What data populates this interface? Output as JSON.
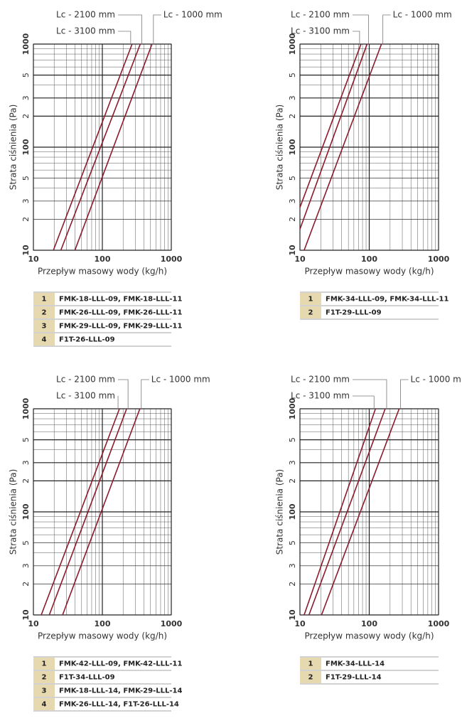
{
  "chart_data": [
    {
      "type": "line",
      "xlabel": "Przepływ masowy wody (kg/h)",
      "ylabel": "Strata ciśnienia (Pa)",
      "log_x": true,
      "log_y": true,
      "grid": true,
      "xlim": [
        10,
        1000
      ],
      "ylim": [
        10,
        1000
      ],
      "xticks": [
        10,
        100,
        1000
      ],
      "yticks": [
        10,
        {
          "value": 20,
          "label": "2"
        },
        {
          "value": 30,
          "label": "3"
        },
        {
          "value": 50,
          "label": "5"
        },
        100,
        {
          "value": 200,
          "label": "2"
        },
        {
          "value": 300,
          "label": "3"
        },
        {
          "value": 500,
          "label": "5"
        },
        1000
      ],
      "series": [
        {
          "name": "Lc - 3100 mm",
          "color": "#8b1a2b",
          "x": [
            19.5,
            270
          ],
          "values": [
            10,
            1000
          ]
        },
        {
          "name": "Lc - 2100 mm",
          "color": "#8b1a2b",
          "x": [
            25,
            355
          ],
          "values": [
            10,
            1000
          ]
        },
        {
          "name": "Lc - 1000 mm",
          "color": "#8b1a2b",
          "x": [
            40,
            525
          ],
          "values": [
            10,
            1000
          ]
        }
      ]
    },
    {
      "type": "line",
      "xlabel": "Przepływ masowy wody (kg/h)",
      "ylabel": "Strata ciśnienia (Pa)",
      "log_x": true,
      "log_y": true,
      "grid": true,
      "xlim": [
        10,
        1000
      ],
      "ylim": [
        10,
        1000
      ],
      "xticks": [
        10,
        100,
        1000
      ],
      "yticks": [
        10,
        {
          "value": 20,
          "label": "2"
        },
        {
          "value": 30,
          "label": "3"
        },
        {
          "value": 50,
          "label": "5"
        },
        100,
        {
          "value": 200,
          "label": "2"
        },
        {
          "value": 300,
          "label": "3"
        },
        {
          "value": 500,
          "label": "5"
        },
        1000
      ],
      "series": [
        {
          "name": "Lc - 3100 mm",
          "color": "#8b1a2b",
          "x": [
            10,
            76
          ],
          "values": [
            26,
            1000
          ]
        },
        {
          "name": "Lc - 2100 mm",
          "color": "#8b1a2b",
          "x": [
            10,
            93
          ],
          "values": [
            16,
            1000
          ]
        },
        {
          "name": "Lc - 1000 mm",
          "color": "#8b1a2b",
          "x": [
            11.5,
            150
          ],
          "values": [
            10,
            1000
          ]
        }
      ]
    },
    {
      "type": "line",
      "xlabel": "Przepływ masowy wody (kg/h)",
      "ylabel": "Strata ciśnienia (Pa)",
      "log_x": true,
      "log_y": true,
      "grid": true,
      "xlim": [
        10,
        1000
      ],
      "ylim": [
        10,
        1000
      ],
      "xticks": [
        10,
        100,
        1000
      ],
      "yticks": [
        10,
        {
          "value": 20,
          "label": "2"
        },
        {
          "value": 30,
          "label": "3"
        },
        {
          "value": 50,
          "label": "5"
        },
        100,
        {
          "value": 200,
          "label": "2"
        },
        {
          "value": 300,
          "label": "3"
        },
        {
          "value": 500,
          "label": "5"
        },
        1000
      ],
      "series": [
        {
          "name": "Lc - 3100 mm",
          "color": "#8b1a2b",
          "x": [
            13,
            177
          ],
          "values": [
            10,
            1000
          ]
        },
        {
          "name": "Lc - 2100 mm",
          "color": "#8b1a2b",
          "x": [
            17,
            225
          ],
          "values": [
            10,
            1000
          ]
        },
        {
          "name": "Lc - 1000 mm",
          "color": "#8b1a2b",
          "x": [
            26.5,
            350
          ],
          "values": [
            10,
            1000
          ]
        }
      ]
    },
    {
      "type": "line",
      "xlabel": "Przepływ masowy wody (kg/h)",
      "ylabel": "Strata ciśnienia (Pa)",
      "log_x": true,
      "log_y": true,
      "grid": true,
      "xlim": [
        10,
        1000
      ],
      "ylim": [
        10,
        1000
      ],
      "xticks": [
        10,
        100,
        1000
      ],
      "yticks": [
        10,
        {
          "value": 20,
          "label": "2"
        },
        {
          "value": 30,
          "label": "3"
        },
        {
          "value": 50,
          "label": "5"
        },
        100,
        {
          "value": 200,
          "label": "2"
        },
        {
          "value": 300,
          "label": "3"
        },
        {
          "value": 500,
          "label": "5"
        },
        1000
      ],
      "series": [
        {
          "name": "Lc - 3100 mm",
          "color": "#8b1a2b",
          "x": [
            11.5,
            123
          ],
          "values": [
            10,
            1000
          ]
        },
        {
          "name": "Lc - 2100 mm",
          "color": "#8b1a2b",
          "x": [
            13.5,
            170
          ],
          "values": [
            10,
            1000
          ]
        },
        {
          "name": "Lc - 1000 mm",
          "color": "#8b1a2b",
          "x": [
            20.5,
            270
          ],
          "values": [
            10,
            1000
          ]
        }
      ]
    }
  ],
  "tables": [
    {
      "rows": [
        [
          1,
          "FMK-18-LLL-09, FMK-18-LLL-11"
        ],
        [
          2,
          "FMK-26-LLL-09, FMK-26-LLL-11"
        ],
        [
          3,
          "FMK-29-LLL-09, FMK-29-LLL-11"
        ],
        [
          4,
          "F1T-26-LLL-09"
        ]
      ]
    },
    {
      "rows": [
        [
          1,
          "FMK-34-LLL-09, FMK-34-LLL-11"
        ],
        [
          2,
          "F1T-29-LLL-09"
        ]
      ]
    },
    {
      "rows": [
        [
          1,
          "FMK-42-LLL-09, FMK-42-LLL-11"
        ],
        [
          2,
          "F1T-34-LLL-09"
        ],
        [
          3,
          "FMK-18-LLL-14, FMK-29-LLL-14"
        ],
        [
          4,
          "FMK-26-LLL-14, F1T-26-LLL-14"
        ]
      ]
    },
    {
      "rows": [
        [
          1,
          "FMK-34-LLL-14"
        ],
        [
          2,
          "F1T-29-LLL-14"
        ]
      ]
    }
  ]
}
